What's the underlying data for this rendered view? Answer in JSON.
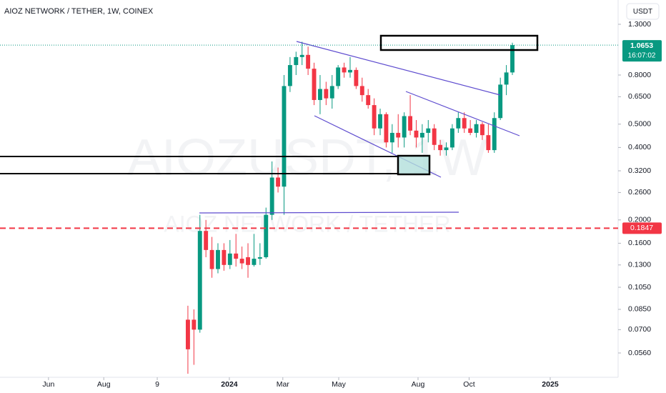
{
  "chart_data": {
    "type": "candlestick",
    "title": "AIOZ NETWORK / TETHER, 1W, COINEX",
    "currency": "USDT",
    "watermark": "AIOZUSDT, 1W",
    "watermark_subtitle": "AIOZ NETWORK / TETHER",
    "log_scale": true,
    "up_color": "#089981",
    "down_color": "#f23645",
    "open": [
      0.077,
      0.077,
      0.07,
      0.18,
      0.15,
      0.125,
      0.15,
      0.13,
      0.145,
      0.138,
      0.14,
      0.13,
      0.138,
      0.14,
      0.21,
      0.3,
      0.275,
      0.72,
      0.88,
      0.95,
      0.97,
      0.85,
      0.63,
      0.7,
      0.64,
      0.72,
      0.86,
      0.82,
      0.84,
      0.72,
      0.66,
      0.6,
      0.48,
      0.55,
      0.42,
      0.46,
      0.44,
      0.54,
      0.47,
      0.44,
      0.46,
      0.48,
      0.41,
      0.39,
      0.4,
      0.48,
      0.53,
      0.48,
      0.46,
      0.5,
      0.45,
      0.39,
      0.53,
      0.73,
      0.82
    ],
    "high": [
      0.088,
      0.085,
      0.21,
      0.2,
      0.17,
      0.16,
      0.16,
      0.165,
      0.175,
      0.155,
      0.16,
      0.175,
      0.16,
      0.225,
      0.35,
      0.33,
      0.8,
      0.95,
      1.0,
      1.1,
      1.05,
      0.9,
      0.8,
      0.75,
      0.8,
      0.88,
      0.9,
      0.95,
      0.86,
      0.78,
      0.7,
      0.64,
      0.58,
      0.56,
      0.5,
      0.55,
      0.56,
      0.66,
      0.52,
      0.5,
      0.52,
      0.5,
      0.43,
      0.42,
      0.5,
      0.56,
      0.56,
      0.52,
      0.52,
      0.51,
      0.5,
      0.56,
      0.78,
      0.88,
      1.09
    ],
    "low": [
      0.0459,
      0.05,
      0.068,
      0.14,
      0.115,
      0.12,
      0.123,
      0.125,
      0.128,
      0.125,
      0.115,
      0.128,
      0.13,
      0.138,
      0.2,
      0.26,
      0.21,
      0.68,
      0.8,
      0.88,
      0.8,
      0.6,
      0.55,
      0.6,
      0.58,
      0.7,
      0.78,
      0.78,
      0.7,
      0.62,
      0.58,
      0.45,
      0.45,
      0.4,
      0.38,
      0.4,
      0.4,
      0.45,
      0.4,
      0.38,
      0.42,
      0.39,
      0.37,
      0.37,
      0.39,
      0.46,
      0.46,
      0.45,
      0.44,
      0.43,
      0.38,
      0.38,
      0.52,
      0.66,
      0.8
    ],
    "close": [
      0.058,
      0.07,
      0.18,
      0.15,
      0.125,
      0.15,
      0.13,
      0.145,
      0.138,
      0.132,
      0.13,
      0.138,
      0.14,
      0.21,
      0.3,
      0.275,
      0.72,
      0.88,
      0.95,
      0.97,
      0.85,
      0.63,
      0.7,
      0.64,
      0.72,
      0.86,
      0.82,
      0.84,
      0.72,
      0.66,
      0.6,
      0.48,
      0.55,
      0.42,
      0.46,
      0.44,
      0.54,
      0.47,
      0.44,
      0.46,
      0.48,
      0.41,
      0.39,
      0.4,
      0.48,
      0.53,
      0.48,
      0.46,
      0.5,
      0.45,
      0.39,
      0.53,
      0.73,
      0.82,
      1.0653
    ],
    "xlim": [
      -31.27,
      71.6
    ],
    "xticks": [
      {
        "value": -23.2,
        "label": "Jun"
      },
      {
        "value": -14.0,
        "label": "Aug"
      },
      {
        "value": -5.1,
        "label": "9"
      },
      {
        "value": 6.9,
        "label": "2024"
      },
      {
        "value": 15.8,
        "label": "Mar"
      },
      {
        "value": 25.1,
        "label": "May"
      },
      {
        "value": 38.3,
        "label": "Aug"
      },
      {
        "value": 46.8,
        "label": "Oct"
      },
      {
        "value": 60.3,
        "label": "2025"
      }
    ],
    "ylim": [
      0.0453,
      1.64
    ],
    "yticks": [
      {
        "value": 1.3,
        "label": "1.3000"
      },
      {
        "value": 0.8,
        "label": "0.8000"
      },
      {
        "value": 0.65,
        "label": "0.6500"
      },
      {
        "value": 0.5,
        "label": "0.5000"
      },
      {
        "value": 0.4,
        "label": "0.4000"
      },
      {
        "value": 0.32,
        "label": "0.3200"
      },
      {
        "value": 0.26,
        "label": "0.2600"
      },
      {
        "value": 0.2,
        "label": "0.2000"
      },
      {
        "value": 0.16,
        "label": "0.1600"
      },
      {
        "value": 0.13,
        "label": "0.1300"
      },
      {
        "value": 0.105,
        "label": "0.1050"
      },
      {
        "value": 0.085,
        "label": "0.0850"
      },
      {
        "value": 0.07,
        "label": "0.0700"
      },
      {
        "value": 0.056,
        "label": "0.0560"
      }
    ],
    "last_price": {
      "value": 1.0653,
      "label": "1.0653",
      "countdown": "16:07:02"
    },
    "alert_line": {
      "value": 0.1847,
      "label": "0.1847"
    }
  }
}
